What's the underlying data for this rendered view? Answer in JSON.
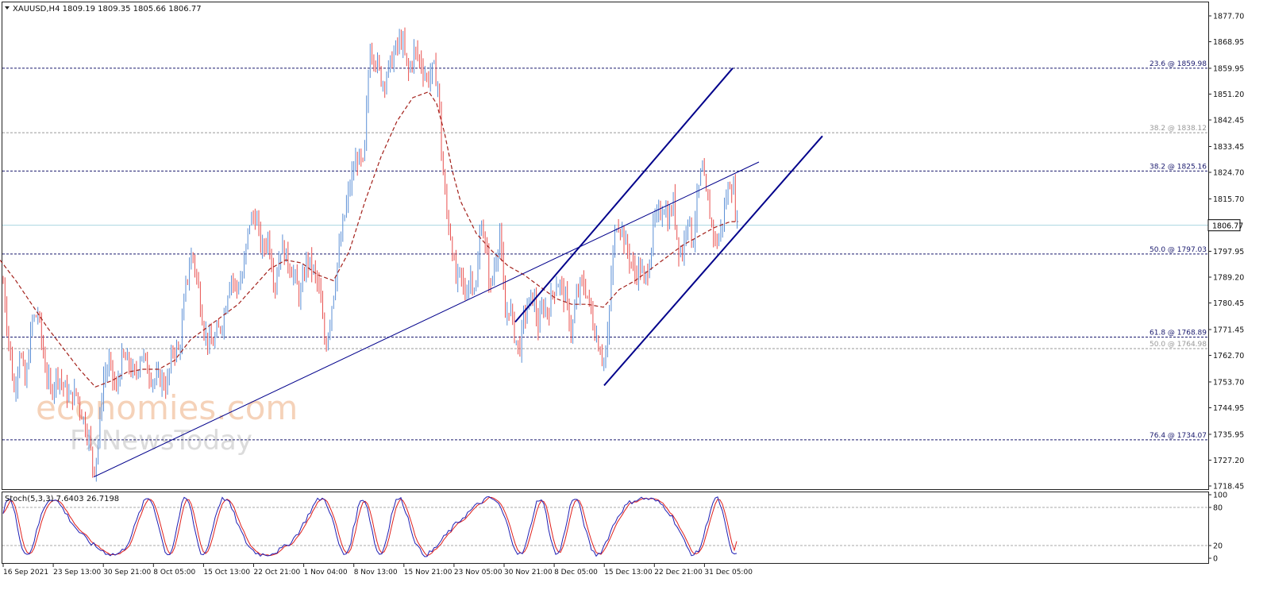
{
  "symbol_header": "XAUUSD,H4  1809.19 1809.35 1805.66 1806.77",
  "stoch_header": "Stoch(5,3,3) 7.6403 26.7198",
  "watermark": {
    "line1": "economies.com",
    "line2": "FxNewsToday"
  },
  "colors": {
    "bull": "#5b8fd6",
    "bear": "#e8504f",
    "ma": "#a3201a",
    "trend": "#00008b",
    "level_dark": "#1a1a6e",
    "level_gray": "#999999",
    "price_line": "#a9d6e0",
    "stoch_main": "#1f1fb4",
    "stoch_signal": "#e0201c"
  },
  "chart_data": {
    "type": "candlestick",
    "symbol": "XAUUSD",
    "timeframe": "H4",
    "ylim": [
      1718.45,
      1881.5
    ],
    "price_ticks": [
      "1877.70",
      "1868.95",
      "1859.95",
      "1851.20",
      "1842.45",
      "1833.45",
      "1824.70",
      "1815.70",
      "1806.77",
      "1797.95",
      "1789.20",
      "1780.45",
      "1771.45",
      "1762.70",
      "1753.70",
      "1744.95",
      "1735.95",
      "1727.20",
      "1718.45"
    ],
    "current_price": "1806.77",
    "time_ticks": [
      "16 Sep 2021",
      "23 Sep 13:00",
      "30 Sep 21:00",
      "8 Oct 05:00",
      "15 Oct 13:00",
      "22 Oct 21:00",
      "1 Nov 04:00",
      "8 Nov 13:00",
      "15 Nov 21:00",
      "23 Nov 05:00",
      "30 Nov 21:00",
      "8 Dec 05:00",
      "15 Dec 13:00",
      "22 Dec 21:00",
      "31 Dec 05:00"
    ],
    "fib_levels": [
      {
        "label": "23.6 @ 1859.98",
        "price": 1859.98,
        "style": "dark"
      },
      {
        "label": "38.2 @ 1838.12",
        "price": 1838.12,
        "style": "gray"
      },
      {
        "label": "38.2 @ 1825.16",
        "price": 1825.16,
        "style": "dark"
      },
      {
        "label": "50.0 @ 1797.03",
        "price": 1797.03,
        "style": "dark"
      },
      {
        "label": "61.8 @ 1768.89",
        "price": 1768.89,
        "style": "dark"
      },
      {
        "label": "50.0 @ 1764.98",
        "price": 1764.98,
        "style": "gray"
      },
      {
        "label": "76.4 @ 1734.07",
        "price": 1734.07,
        "style": "dark"
      }
    ],
    "price_path": [
      [
        0,
        1799
      ],
      [
        10,
        1770
      ],
      [
        18,
        1750
      ],
      [
        25,
        1765
      ],
      [
        32,
        1752
      ],
      [
        40,
        1774
      ],
      [
        48,
        1777
      ],
      [
        56,
        1760
      ],
      [
        64,
        1750
      ],
      [
        72,
        1757
      ],
      [
        80,
        1752
      ],
      [
        88,
        1748
      ],
      [
        96,
        1750
      ],
      [
        104,
        1742
      ],
      [
        112,
        1735
      ],
      [
        118,
        1723
      ],
      [
        124,
        1734
      ],
      [
        130,
        1755
      ],
      [
        138,
        1760
      ],
      [
        146,
        1750
      ],
      [
        154,
        1762
      ],
      [
        162,
        1760
      ],
      [
        170,
        1755
      ],
      [
        178,
        1764
      ],
      [
        186,
        1758
      ],
      [
        194,
        1754
      ],
      [
        202,
        1755
      ],
      [
        210,
        1752
      ],
      [
        218,
        1765
      ],
      [
        226,
        1764
      ],
      [
        234,
        1786
      ],
      [
        242,
        1798
      ],
      [
        250,
        1785
      ],
      [
        258,
        1770
      ],
      [
        266,
        1766
      ],
      [
        274,
        1770
      ],
      [
        282,
        1776
      ],
      [
        290,
        1790
      ],
      [
        298,
        1785
      ],
      [
        306,
        1790
      ],
      [
        314,
        1808
      ],
      [
        322,
        1810
      ],
      [
        330,
        1798
      ],
      [
        338,
        1803
      ],
      [
        346,
        1786
      ],
      [
        354,
        1800
      ],
      [
        362,
        1795
      ],
      [
        370,
        1790
      ],
      [
        378,
        1782
      ],
      [
        386,
        1795
      ],
      [
        394,
        1792
      ],
      [
        402,
        1785
      ],
      [
        410,
        1765
      ],
      [
        418,
        1780
      ],
      [
        426,
        1796
      ],
      [
        434,
        1810
      ],
      [
        442,
        1822
      ],
      [
        450,
        1830
      ],
      [
        458,
        1826
      ],
      [
        466,
        1868
      ],
      [
        474,
        1862
      ],
      [
        482,
        1855
      ],
      [
        490,
        1860
      ],
      [
        498,
        1866
      ],
      [
        506,
        1870
      ],
      [
        514,
        1858
      ],
      [
        522,
        1866
      ],
      [
        530,
        1862
      ],
      [
        538,
        1856
      ],
      [
        546,
        1860
      ],
      [
        552,
        1854
      ],
      [
        556,
        1832
      ],
      [
        560,
        1818
      ],
      [
        564,
        1808
      ],
      [
        568,
        1803
      ],
      [
        574,
        1788
      ],
      [
        580,
        1790
      ],
      [
        586,
        1783
      ],
      [
        592,
        1790
      ],
      [
        600,
        1785
      ],
      [
        606,
        1810
      ],
      [
        612,
        1798
      ],
      [
        618,
        1785
      ],
      [
        624,
        1795
      ],
      [
        630,
        1805
      ],
      [
        636,
        1775
      ],
      [
        642,
        1780
      ],
      [
        648,
        1770
      ],
      [
        654,
        1764
      ],
      [
        660,
        1776
      ],
      [
        666,
        1780
      ],
      [
        672,
        1783
      ],
      [
        678,
        1772
      ],
      [
        684,
        1780
      ],
      [
        690,
        1777
      ],
      [
        696,
        1784
      ],
      [
        702,
        1788
      ],
      [
        708,
        1785
      ],
      [
        714,
        1780
      ],
      [
        720,
        1770
      ],
      [
        726,
        1782
      ],
      [
        732,
        1787
      ],
      [
        738,
        1785
      ],
      [
        744,
        1778
      ],
      [
        750,
        1770
      ],
      [
        756,
        1765
      ],
      [
        762,
        1760
      ],
      [
        766,
        1770
      ],
      [
        770,
        1790
      ],
      [
        776,
        1808
      ],
      [
        782,
        1807
      ],
      [
        788,
        1800
      ],
      [
        794,
        1795
      ],
      [
        800,
        1790
      ],
      [
        806,
        1793
      ],
      [
        812,
        1787
      ],
      [
        818,
        1795
      ],
      [
        824,
        1808
      ],
      [
        830,
        1810
      ],
      [
        836,
        1814
      ],
      [
        842,
        1808
      ],
      [
        848,
        1815
      ],
      [
        854,
        1800
      ],
      [
        860,
        1797
      ],
      [
        866,
        1812
      ],
      [
        872,
        1800
      ],
      [
        878,
        1815
      ],
      [
        884,
        1826
      ],
      [
        890,
        1816
      ],
      [
        896,
        1808
      ],
      [
        902,
        1800
      ],
      [
        908,
        1805
      ],
      [
        914,
        1815
      ],
      [
        920,
        1822
      ],
      [
        924,
        1818
      ],
      [
        928,
        1808
      ],
      [
        931,
        1806.77
      ]
    ],
    "ma_path": [
      [
        0,
        1795
      ],
      [
        20,
        1788
      ],
      [
        40,
        1780
      ],
      [
        60,
        1772
      ],
      [
        80,
        1765
      ],
      [
        100,
        1758
      ],
      [
        120,
        1752
      ],
      [
        140,
        1754
      ],
      [
        160,
        1757
      ],
      [
        180,
        1758
      ],
      [
        200,
        1758
      ],
      [
        220,
        1761
      ],
      [
        240,
        1768
      ],
      [
        260,
        1772
      ],
      [
        280,
        1776
      ],
      [
        300,
        1780
      ],
      [
        320,
        1786
      ],
      [
        340,
        1792
      ],
      [
        360,
        1795
      ],
      [
        380,
        1794
      ],
      [
        400,
        1790
      ],
      [
        420,
        1788
      ],
      [
        440,
        1798
      ],
      [
        460,
        1815
      ],
      [
        480,
        1830
      ],
      [
        500,
        1842
      ],
      [
        520,
        1850
      ],
      [
        540,
        1852
      ],
      [
        550,
        1848
      ],
      [
        560,
        1838
      ],
      [
        570,
        1825
      ],
      [
        580,
        1815
      ],
      [
        600,
        1804
      ],
      [
        620,
        1798
      ],
      [
        640,
        1793
      ],
      [
        660,
        1790
      ],
      [
        680,
        1786
      ],
      [
        700,
        1782
      ],
      [
        720,
        1780
      ],
      [
        740,
        1780
      ],
      [
        760,
        1779
      ],
      [
        780,
        1785
      ],
      [
        800,
        1788
      ],
      [
        820,
        1792
      ],
      [
        840,
        1796
      ],
      [
        860,
        1800
      ],
      [
        880,
        1803
      ],
      [
        900,
        1806
      ],
      [
        920,
        1808
      ],
      [
        930,
        1808
      ]
    ],
    "trendlines": [
      {
        "name": "long support",
        "p1": [
          118,
          1721.5
        ],
        "p2": [
          956,
          1828.2
        ],
        "width": 1
      },
      {
        "name": "channel upper",
        "p1": [
          649,
          1774
        ],
        "p2": [
          923,
          1860
        ],
        "width": 2
      },
      {
        "name": "channel lower",
        "p1": [
          761,
          1752.5
        ],
        "p2": [
          1036,
          1837
        ],
        "width": 2
      }
    ],
    "stochastic": {
      "params": "5,3,3",
      "main": 7.6403,
      "signal": 26.7198,
      "levels": [
        20,
        80
      ],
      "ticks": [
        "100",
        "80",
        "20",
        "0"
      ]
    }
  }
}
